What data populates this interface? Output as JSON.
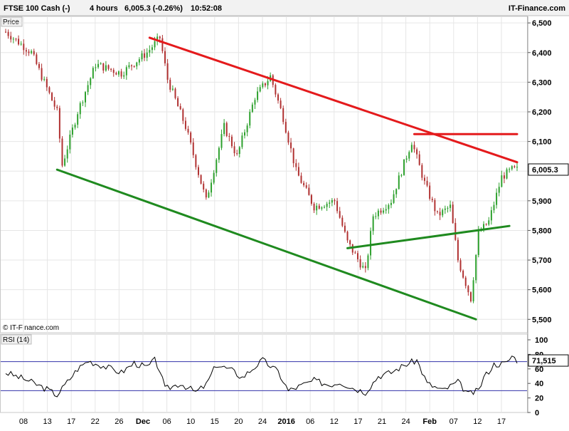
{
  "header": {
    "instrument": "FTSE 100 Cash (-)",
    "timeframe": "4 hours",
    "quote": "6,005.3 (-0.26%)",
    "time": "10:52:08",
    "brand": "IT-Finance.com"
  },
  "price_panel": {
    "label": "Price",
    "watermark": "© IT-Finance.com"
  },
  "rsi_panel": {
    "label": "RSI (14)"
  },
  "colors": {
    "up": "#2ca02c",
    "down": "#b03030",
    "resistance": "#e41a1c",
    "support": "#1f8a1f",
    "grid": "#e6e6e6",
    "rsi_line": "#000000",
    "rsi_levels": "#3333aa",
    "header_bg": "#f2f2f2"
  },
  "chart_data": [
    {
      "type": "candlestick",
      "panel": "price",
      "y_ticks": [
        "6,500",
        "6,400",
        "6,300",
        "6,200",
        "6,100",
        "6,000",
        "5,900",
        "5,800",
        "5,700",
        "5,600",
        "5,500"
      ],
      "y_tick_values": [
        6500,
        6400,
        6300,
        6200,
        6100,
        6000,
        5900,
        5800,
        5700,
        5600,
        5500
      ],
      "ylim": [
        5455,
        6522
      ],
      "last_price": 6005.3,
      "last_price_label": "6,005.3",
      "x_ticks": [
        "08",
        "13",
        "17",
        "22",
        "26",
        "Dec",
        "06",
        "10",
        "15",
        "20",
        "24",
        "2016",
        "06",
        "12",
        "17",
        "21",
        "24",
        "Feb",
        "07",
        "12",
        "17"
      ],
      "bar_count": 200,
      "anchors": [
        [
          0,
          6470
        ],
        [
          10,
          6400
        ],
        [
          20,
          6200
        ],
        [
          22,
          6020
        ],
        [
          28,
          6200
        ],
        [
          35,
          6360
        ],
        [
          45,
          6330
        ],
        [
          55,
          6400
        ],
        [
          60,
          6450
        ],
        [
          63,
          6310
        ],
        [
          70,
          6150
        ],
        [
          78,
          5900
        ],
        [
          85,
          6150
        ],
        [
          90,
          6050
        ],
        [
          97,
          6250
        ],
        [
          103,
          6320
        ],
        [
          108,
          6180
        ],
        [
          113,
          6000
        ],
        [
          120,
          5880
        ],
        [
          128,
          5900
        ],
        [
          133,
          5760
        ],
        [
          140,
          5660
        ],
        [
          143,
          5850
        ],
        [
          150,
          5900
        ],
        [
          158,
          6100
        ],
        [
          163,
          5960
        ],
        [
          168,
          5850
        ],
        [
          173,
          5880
        ],
        [
          176,
          5700
        ],
        [
          181,
          5570
        ],
        [
          184,
          5790
        ],
        [
          188,
          5830
        ],
        [
          193,
          5980
        ],
        [
          197,
          6005
        ]
      ],
      "trendlines": [
        {
          "name": "upper-channel",
          "color": "resistance",
          "from": [
            56,
            6450
          ],
          "to": [
            199,
            6030
          ]
        },
        {
          "name": "horizontal-resistance",
          "color": "resistance",
          "from": [
            159,
            6125
          ],
          "to": [
            199,
            6125
          ]
        },
        {
          "name": "lower-channel",
          "color": "support",
          "from": [
            20,
            6005
          ],
          "to": [
            183,
            5500
          ]
        },
        {
          "name": "neckline",
          "color": "support",
          "from": [
            133,
            5740
          ],
          "to": [
            196,
            5815
          ]
        }
      ]
    },
    {
      "type": "line",
      "panel": "rsi",
      "y_ticks": [
        "100",
        "80",
        "60",
        "40",
        "20",
        "0"
      ],
      "y_tick_values": [
        100,
        80,
        60,
        40,
        20,
        0
      ],
      "ylim": [
        0,
        100
      ],
      "levels": [
        70,
        30
      ],
      "last_value": 71.515,
      "last_value_label": "71,515",
      "anchors": [
        [
          0,
          55
        ],
        [
          8,
          45
        ],
        [
          16,
          32
        ],
        [
          20,
          24
        ],
        [
          28,
          60
        ],
        [
          32,
          71
        ],
        [
          38,
          64
        ],
        [
          45,
          55
        ],
        [
          50,
          68
        ],
        [
          55,
          62
        ],
        [
          58,
          72
        ],
        [
          60,
          58
        ],
        [
          62,
          32
        ],
        [
          68,
          40
        ],
        [
          74,
          28
        ],
        [
          78,
          38
        ],
        [
          82,
          66
        ],
        [
          88,
          58
        ],
        [
          92,
          48
        ],
        [
          100,
          72
        ],
        [
          106,
          56
        ],
        [
          110,
          30
        ],
        [
          120,
          44
        ],
        [
          126,
          38
        ],
        [
          130,
          42
        ],
        [
          135,
          34
        ],
        [
          140,
          28
        ],
        [
          145,
          50
        ],
        [
          150,
          55
        ],
        [
          155,
          65
        ],
        [
          160,
          72
        ],
        [
          164,
          40
        ],
        [
          170,
          30
        ],
        [
          176,
          42
        ],
        [
          180,
          25
        ],
        [
          184,
          30
        ],
        [
          186,
          48
        ],
        [
          190,
          66
        ],
        [
          195,
          68
        ],
        [
          197,
          78
        ],
        [
          199,
          72
        ]
      ]
    }
  ]
}
